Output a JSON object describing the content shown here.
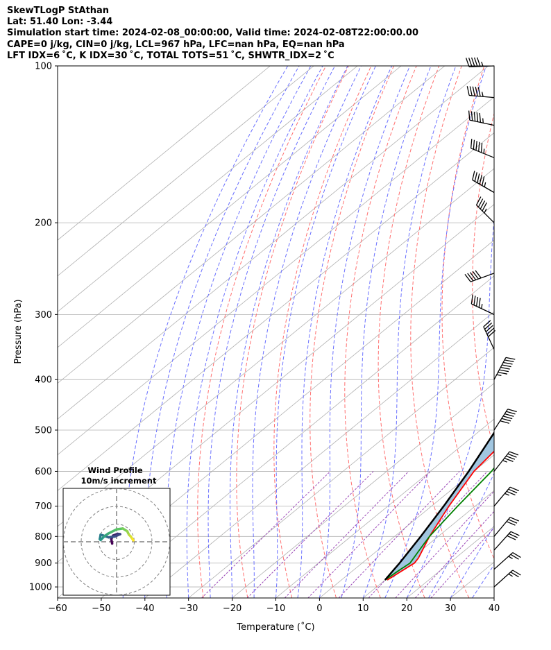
{
  "header": {
    "line1": "SkewTLogP StAthan",
    "line2": "Lat: 51.40   Lon: -3.44",
    "line3": "Simulation start time: 2024-02-08_00:00:00, Valid time: 2024-02-08T22:00:00.00",
    "line4": "CAPE=0 j/kg, CIN=0 j/kg, LCL=967 hPa, LFC=nan hPa, EQ=nan hPa",
    "line5": "LFT IDX=6 ˚C, K IDX=30 ˚C, TOTAL TOTS=51 ˚C, SHWTR_IDX=2 ˚C"
  },
  "chart_data": {
    "type": "line",
    "xlabel": "Temperature (˚C)",
    "ylabel": "Pressure (hPa)",
    "xlim": [
      -60,
      40
    ],
    "ylim": [
      1050,
      100
    ],
    "log_y": true,
    "x_ticks": [
      "−60",
      "−50",
      "−40",
      "−30",
      "−20",
      "−10",
      "0",
      "10",
      "20",
      "30",
      "40"
    ],
    "y_ticks": [
      "100",
      "200",
      "300",
      "400",
      "500",
      "600",
      "700",
      "800",
      "900",
      "1000"
    ],
    "y_tick_values": [
      100,
      200,
      300,
      400,
      500,
      600,
      700,
      800,
      900,
      1000
    ],
    "grid": true,
    "colors": {
      "temperature": "#ff0000",
      "dewpoint": "#008000",
      "parcel": "#000000",
      "shade": "#a1c6e0",
      "dry_adiabats": "#ff7070",
      "moist_adiabats": "#6a70ff",
      "mixing_ratio": "#9c4ab8",
      "isotherms": "#b0b0b0"
    },
    "temperature_profile": [
      [
        970,
        10.5
      ],
      [
        900,
        12
      ],
      [
        880,
        11.5
      ],
      [
        800,
        8
      ],
      [
        700,
        4
      ],
      [
        600,
        0
      ],
      [
        500,
        -2
      ],
      [
        460,
        -4
      ],
      [
        400,
        -8
      ],
      [
        350,
        -11
      ],
      [
        310,
        -13
      ],
      [
        280,
        -15
      ],
      [
        270,
        -15
      ],
      [
        250,
        -13
      ],
      [
        230,
        -11
      ],
      [
        210,
        -8
      ],
      [
        180,
        -5
      ],
      [
        160,
        -2
      ],
      [
        140,
        1
      ],
      [
        120,
        4
      ],
      [
        100,
        6
      ]
    ],
    "dewpoint_profile": [
      [
        970,
        10
      ],
      [
        930,
        10.5
      ],
      [
        900,
        11
      ],
      [
        850,
        9.5
      ],
      [
        800,
        8
      ],
      [
        700,
        6
      ],
      [
        600,
        4
      ],
      [
        500,
        0
      ],
      [
        470,
        -2
      ],
      [
        440,
        -4
      ],
      [
        420,
        -9
      ],
      [
        410,
        -14
      ],
      [
        380,
        -15
      ],
      [
        340,
        -16
      ],
      [
        320,
        -15
      ],
      [
        300,
        -18
      ],
      [
        260,
        -20
      ],
      [
        230,
        -24
      ],
      [
        210,
        -26
      ],
      [
        190,
        -26
      ],
      [
        170,
        -25
      ],
      [
        150,
        -25
      ],
      [
        140,
        -23
      ],
      [
        130,
        -21
      ],
      [
        115,
        -18
      ],
      [
        100,
        -16
      ]
    ],
    "parcel_profile": [
      [
        970,
        10
      ],
      [
        900,
        8.6
      ],
      [
        800,
        6
      ],
      [
        700,
        2.8
      ],
      [
        600,
        -1.2
      ],
      [
        500,
        -6.5
      ],
      [
        400,
        -14
      ],
      [
        300,
        -26
      ],
      [
        250,
        -34.5
      ],
      [
        200,
        -44
      ],
      [
        150,
        -56
      ],
      [
        120,
        -64
      ],
      [
        100,
        -70
      ]
    ],
    "wind_barbs": [
      [
        1000,
        48,
        23
      ],
      [
        925,
        48,
        26
      ],
      [
        850,
        42,
        28
      ],
      [
        800,
        40,
        30
      ],
      [
        700,
        40,
        35
      ],
      [
        600,
        38,
        45
      ],
      [
        500,
        33,
        60
      ],
      [
        400,
        28,
        75
      ],
      [
        350,
        335,
        50
      ],
      [
        300,
        295,
        45
      ],
      [
        250,
        250,
        50
      ],
      [
        200,
        315,
        45
      ],
      [
        175,
        300,
        55
      ],
      [
        150,
        292,
        55
      ],
      [
        130,
        282,
        55
      ],
      [
        115,
        275,
        55
      ],
      [
        100,
        268,
        55
      ]
    ],
    "hodograph": {
      "title": "Wind Profile",
      "subtitle": "10m/s increment",
      "rings": [
        10,
        20,
        30
      ],
      "points": [
        [
          -2.5,
          -1
        ],
        [
          -3.0,
          1.5
        ],
        [
          -2.0,
          3.5
        ],
        [
          0.5,
          4.5
        ],
        [
          2.0,
          4.3
        ],
        [
          -1.0,
          3.0
        ],
        [
          -4.5,
          2.5
        ],
        [
          -7.5,
          3.5
        ],
        [
          -9.0,
          4.0
        ],
        [
          -9.5,
          1.5
        ],
        [
          -9.0,
          1.0
        ],
        [
          -7.0,
          3.0
        ],
        [
          -5.0,
          4.5
        ],
        [
          -3.0,
          5.5
        ],
        [
          0.0,
          7.0
        ],
        [
          3.5,
          7.5
        ],
        [
          6.0,
          6.0
        ],
        [
          7.0,
          4.0
        ],
        [
          8.0,
          3.0
        ],
        [
          9.0,
          1.5
        ],
        [
          9.5,
          0.8
        ]
      ]
    }
  }
}
